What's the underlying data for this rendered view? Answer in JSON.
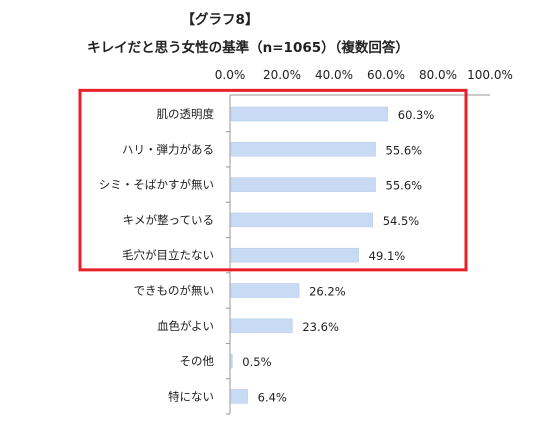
{
  "title_line1": "【グラフ8】",
  "title_line2": "キレイだと思う女性の基準（n=1065）（複数回答）",
  "chart_data": {
    "type": "bar",
    "orientation": "horizontal",
    "categories": [
      "肌の透明度",
      "ハリ・弾力がある",
      "シミ・そばかすが無い",
      "キメが整っている",
      "毛穴が目立たない",
      "できものが無い",
      "血色がよい",
      "その他",
      "特にない"
    ],
    "values": [
      60.3,
      55.6,
      55.6,
      54.5,
      49.1,
      26.2,
      23.6,
      0.5,
      6.4
    ],
    "value_labels": [
      "60.3%",
      "55.6%",
      "55.6%",
      "54.5%",
      "49.1%",
      "26.2%",
      "23.6%",
      "0.5%",
      "6.4%"
    ],
    "xlim": [
      0,
      100
    ],
    "x_ticks": [
      "0.0%",
      "20.0%",
      "40.0%",
      "60.0%",
      "80.0%",
      "100.0%"
    ],
    "x_axis_position": "top",
    "grid": false,
    "highlight_box": "first 5 categories",
    "colors": {
      "bar": "#c9daf5",
      "bar_stroke": "#b5c9ec",
      "highlight": "#e8202a",
      "axis": "#999999"
    }
  }
}
